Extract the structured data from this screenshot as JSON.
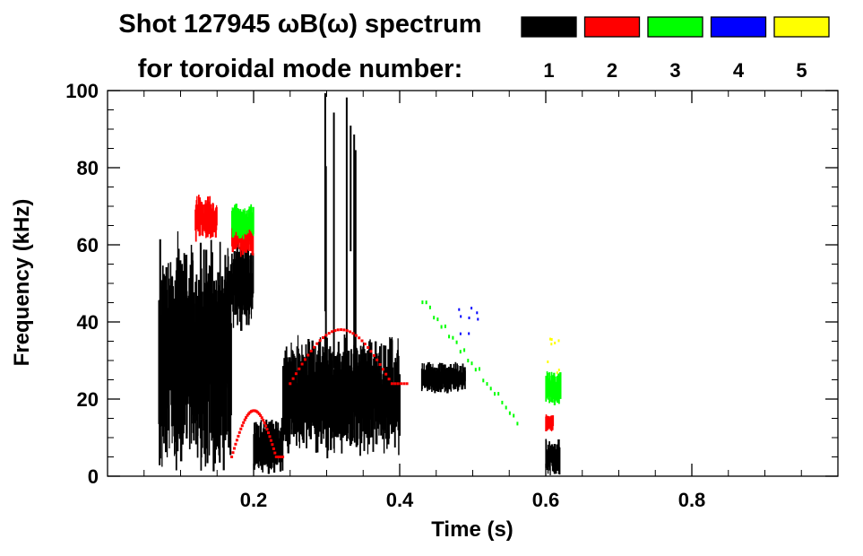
{
  "chart_data": {
    "type": "heatmap",
    "title_line1": "Shot 127945 ωB(ω) spectrum",
    "title_line2": "for toroidal mode number:",
    "xlabel": "Time (s)",
    "ylabel": "Frequency (kHz)",
    "xlim": [
      0,
      1.0
    ],
    "ylim": [
      0,
      100
    ],
    "x_ticks": [
      0.2,
      0.4,
      0.6,
      0.8
    ],
    "x_tick_labels": [
      "0.2",
      "0.4",
      "0.6",
      "0.8"
    ],
    "y_ticks": [
      0,
      20,
      40,
      60,
      80,
      100
    ],
    "y_tick_labels": [
      "0",
      "20",
      "40",
      "60",
      "80",
      "100"
    ],
    "legend": {
      "placement": "top-right",
      "entries": [
        {
          "label": "1",
          "color": "#000000"
        },
        {
          "label": "2",
          "color": "#ff0000"
        },
        {
          "label": "3",
          "color": "#00ff00"
        },
        {
          "label": "4",
          "color": "#0000ff"
        },
        {
          "label": "5",
          "color": "#ffff00"
        }
      ]
    },
    "grid": false,
    "series": [
      {
        "mode": 1,
        "color": "#000000",
        "features": [
          {
            "shape": "blob",
            "t_range": [
              0.07,
              0.17
            ],
            "f_range": [
              6,
              58
            ]
          },
          {
            "shape": "blob",
            "t_range": [
              0.17,
              0.2
            ],
            "f_range": [
              40,
              60
            ]
          },
          {
            "shape": "blob",
            "t_range": [
              0.2,
              0.24
            ],
            "f_range": [
              2,
              14
            ]
          },
          {
            "shape": "blob",
            "t_range": [
              0.24,
              0.4
            ],
            "f_range": [
              8,
              34
            ]
          },
          {
            "shape": "spikes",
            "t_range": [
              0.29,
              0.34
            ],
            "f_range": [
              30,
              100
            ]
          },
          {
            "shape": "blob",
            "t_range": [
              0.43,
              0.49
            ],
            "f_range": [
              22,
              29
            ]
          },
          {
            "shape": "blob",
            "t_range": [
              0.6,
              0.62
            ],
            "f_range": [
              1,
              9
            ]
          }
        ]
      },
      {
        "mode": 2,
        "color": "#ff0000",
        "features": [
          {
            "shape": "blob",
            "t_range": [
              0.12,
              0.15
            ],
            "f_range": [
              62,
              72
            ]
          },
          {
            "shape": "blob",
            "t_range": [
              0.17,
              0.2
            ],
            "f_range": [
              58,
              68
            ]
          },
          {
            "shape": "arc",
            "t_range": [
              0.25,
              0.41
            ],
            "f_range": [
              24,
              38
            ]
          },
          {
            "shape": "arc",
            "t_range": [
              0.17,
              0.24
            ],
            "f_range": [
              5,
              17
            ]
          },
          {
            "shape": "blob",
            "t_range": [
              0.6,
              0.61
            ],
            "f_range": [
              12,
              16
            ]
          }
        ]
      },
      {
        "mode": 3,
        "color": "#00ff00",
        "features": [
          {
            "shape": "blob",
            "t_range": [
              0.17,
              0.2
            ],
            "f_range": [
              62,
              70
            ]
          },
          {
            "shape": "streak",
            "t_range": [
              0.43,
              0.56
            ],
            "f_range": [
              15,
              46
            ]
          },
          {
            "shape": "blob",
            "t_range": [
              0.6,
              0.62
            ],
            "f_range": [
              19,
              27
            ]
          }
        ]
      },
      {
        "mode": 4,
        "color": "#0000ff",
        "features": [
          {
            "shape": "points",
            "t_range": [
              0.48,
              0.51
            ],
            "f_range": [
              37,
              44
            ]
          }
        ]
      },
      {
        "mode": 5,
        "color": "#ffff00",
        "features": [
          {
            "shape": "points",
            "t_range": [
              0.6,
              0.62
            ],
            "f_range": [
              27,
              37
            ]
          }
        ]
      }
    ]
  }
}
